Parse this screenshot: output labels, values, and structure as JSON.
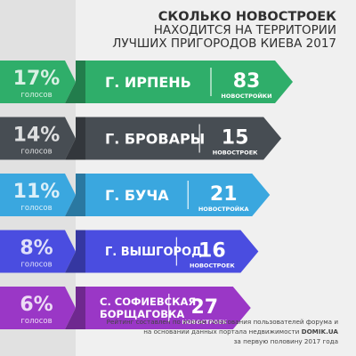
{
  "title": {
    "line1": "СКОЛЬКО НОВОСТРОЕК",
    "line2": "НАХОДИТСЯ НА ТЕРРИТОРИИ",
    "line3": "ЛУЧШИХ ПРИГОРОДОВ КИЕВА 2017"
  },
  "colors": {
    "green": "#2fae6a",
    "dark": "#474d53",
    "blue": "#3aa7df",
    "indigo": "#4a4de0",
    "purple": "#9a37c6",
    "panel": "#e1e1e1",
    "background": "#f0f0f0"
  },
  "chart_data": {
    "type": "bar",
    "value_unit": "%",
    "rows": [
      {
        "percent": 17,
        "percent_label": "17%",
        "vote_label": "голосов",
        "city_lines": [
          "Г. ИРПЕНЬ"
        ],
        "count": 83,
        "count_label": "НОВОСТРОЙКИ",
        "color": "#2fae6a"
      },
      {
        "percent": 14,
        "percent_label": "14%",
        "vote_label": "голосов",
        "city_lines": [
          "Г. БРОВАРЫ"
        ],
        "count": 15,
        "count_label": "НОВОСТРОЕК",
        "color": "#474d53"
      },
      {
        "percent": 11,
        "percent_label": "11%",
        "vote_label": "голосов",
        "city_lines": [
          "Г. БУЧА"
        ],
        "count": 21,
        "count_label": "НОВОСТРОЙКА",
        "color": "#3aa7df"
      },
      {
        "percent": 8,
        "percent_label": "8%",
        "vote_label": "голосов",
        "city_lines": [
          "Г. ВЫШГОРОД"
        ],
        "count": 16,
        "count_label": "НОВОСТРОЕК",
        "color": "#4a4de0"
      },
      {
        "percent": 6,
        "percent_label": "6%",
        "vote_label": "голосов",
        "city_lines": [
          "С. СОФИЕВСКАЯ",
          "БОРЩАГОВКА"
        ],
        "count": 27,
        "count_label": "НОВОСТРОЕК",
        "color": "#9a37c6"
      }
    ]
  },
  "footnote": {
    "line1": "Рейтинг составлен по итогам голосования пользователей форума и",
    "line2_prefix": "на основании данных портала недвижимости ",
    "line2_brand": "DOMIK.UA",
    "line3": "за первую половину 2017 года"
  }
}
